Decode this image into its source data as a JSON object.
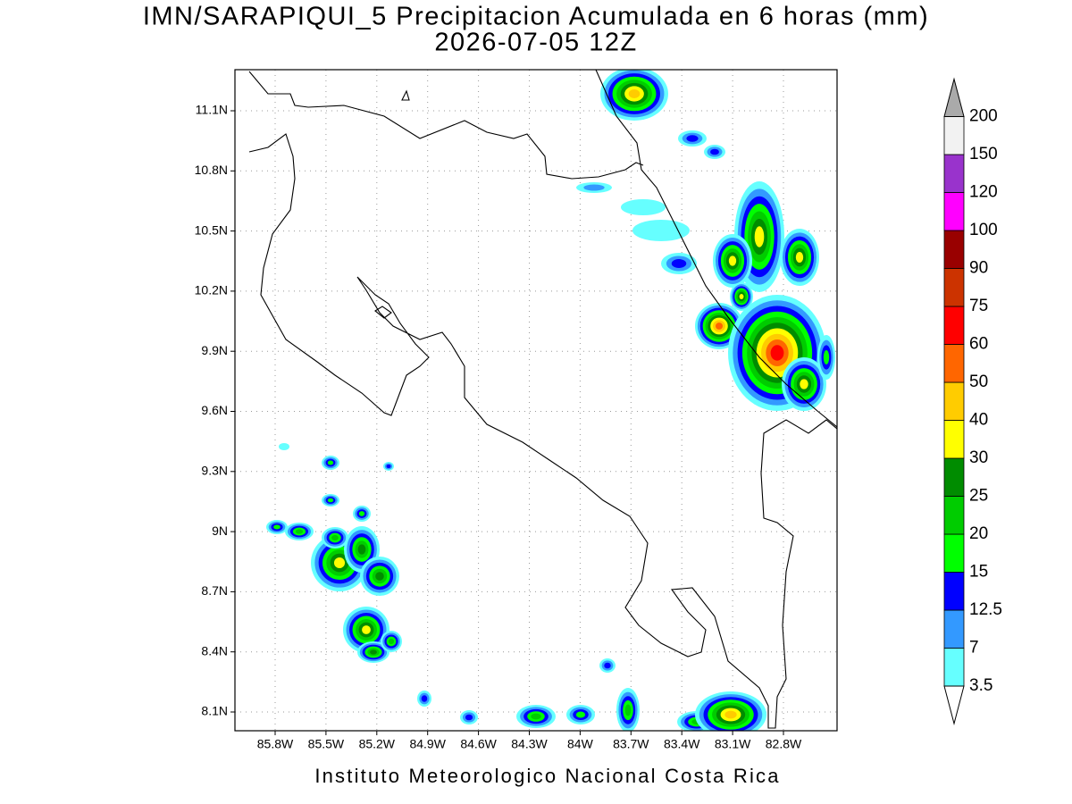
{
  "header": {
    "title": "IMN/SARAPIQUI_5 Precipitacion Acumulada en 6 horas (mm)",
    "subtitle": "2026-07-05 12Z"
  },
  "map": {
    "lon_ticks": [
      "85.8W",
      "85.5W",
      "85.2W",
      "84.9W",
      "84.6W",
      "84.3W",
      "84W",
      "83.7W",
      "83.4W",
      "83.1W",
      "82.8W"
    ],
    "lat_ticks": [
      "11.1N",
      "10.8N",
      "10.5N",
      "10.2N",
      "9.9N",
      "9.6N",
      "9.3N",
      "9N",
      "8.7N",
      "8.4N",
      "8.1N"
    ]
  },
  "colorbar": {
    "labels": [
      "3.5",
      "7",
      "12.5",
      "15",
      "20",
      "25",
      "30",
      "40",
      "50",
      "60",
      "75",
      "90",
      "100",
      "120",
      "150",
      "200"
    ],
    "colors": [
      "#66ffff",
      "#3399ff",
      "#0000ff",
      "#00ff00",
      "#00cc00",
      "#008c00",
      "#ffff00",
      "#ffcc00",
      "#ff6600",
      "#ff0000",
      "#cc3300",
      "#990000",
      "#ff00ff",
      "#9933cc",
      "#f2f2f2"
    ],
    "under_color": "#ffffff",
    "over_color": "#aaaaaa"
  },
  "footer": "Instituto Meteorologico Nacional Costa Rica"
}
